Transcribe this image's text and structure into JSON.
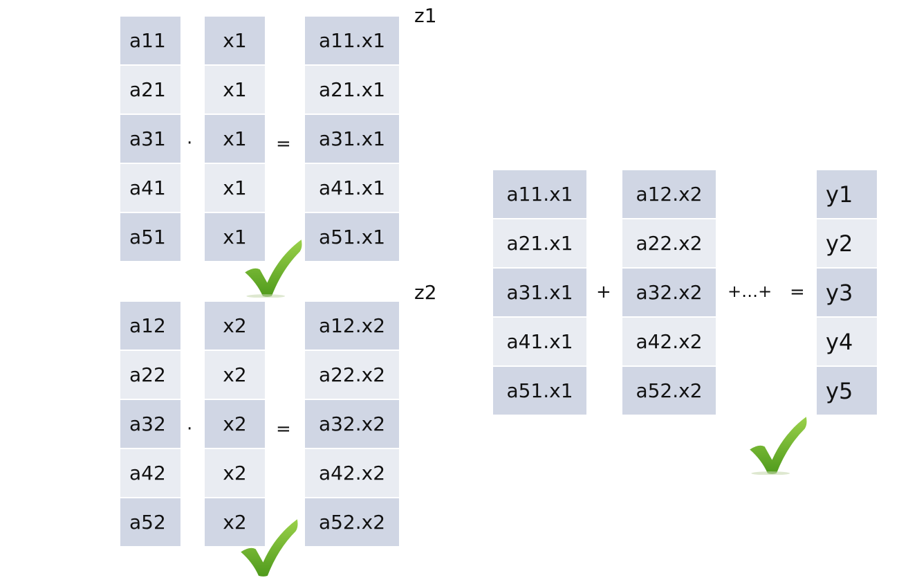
{
  "blocks": [
    {
      "label": "z1",
      "a": [
        "a11",
        "a21",
        "a31",
        "a41",
        "a51"
      ],
      "x": [
        "x1",
        "x1",
        "x1",
        "x1",
        "x1"
      ],
      "prod": [
        "a11.x1",
        "a21.x1",
        "a31.x1",
        "a41.x1",
        "a51.x1"
      ],
      "dot": "·",
      "eq": "="
    },
    {
      "label": "z2",
      "a": [
        "a12",
        "a22",
        "a32",
        "a42",
        "a52"
      ],
      "x": [
        "x2",
        "x2",
        "x2",
        "x2",
        "x2"
      ],
      "prod": [
        "a12.x2",
        "a22.x2",
        "a32.x2",
        "a42.x2",
        "a52.x2"
      ],
      "dot": "·",
      "eq": "="
    }
  ],
  "sum": {
    "col1": [
      "a11.x1",
      "a21.x1",
      "a31.x1",
      "a41.x1",
      "a51.x1"
    ],
    "plus": "+",
    "col2": [
      "a12.x2",
      "a22.x2",
      "a32.x2",
      "a42.x2",
      "a52.x2"
    ],
    "ellipsis": "+…+",
    "eq": "=",
    "y": [
      "y1",
      "y2",
      "y3",
      "y4",
      "y5"
    ]
  },
  "icons": [
    "checkmark-icon",
    "checkmark-icon",
    "checkmark-icon"
  ],
  "colors": {
    "cell_dark": "#d0d6e4",
    "cell_light": "#e9ecf2",
    "check_green": "#6fb42c"
  }
}
